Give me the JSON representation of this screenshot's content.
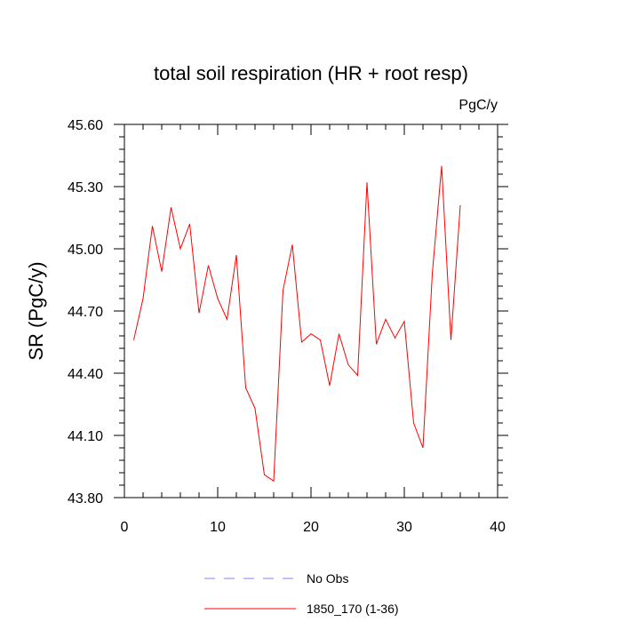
{
  "chart_data": {
    "type": "line",
    "title": "total soil respiration (HR + root resp)",
    "units": "PgC/y",
    "xlabel": "",
    "ylabel": "SR  (PgC/y)",
    "xlim": [
      0,
      40
    ],
    "ylim": [
      43.8,
      45.6
    ],
    "x_ticks": [
      0,
      10,
      20,
      30,
      40
    ],
    "x_tick_labels": [
      "0",
      "10",
      "20",
      "30",
      "40"
    ],
    "y_ticks": [
      43.8,
      44.1,
      44.4,
      44.7,
      45.0,
      45.3,
      45.6
    ],
    "y_tick_labels": [
      "43.80",
      "44.10",
      "44.40",
      "44.70",
      "45.00",
      "45.30",
      "45.60"
    ],
    "grid": false,
    "legend_position": "bottom",
    "series": [
      {
        "name": "No Obs",
        "color": "#8080ff",
        "style": "dashed",
        "x": [],
        "values": []
      },
      {
        "name": "1850_170 (1-36)",
        "color": "#ff0000",
        "style": "solid",
        "x": [
          1,
          2,
          3,
          4,
          5,
          6,
          7,
          8,
          9,
          10,
          11,
          12,
          13,
          14,
          15,
          16,
          17,
          18,
          19,
          20,
          21,
          22,
          23,
          24,
          25,
          26,
          27,
          28,
          29,
          30,
          31,
          32,
          33,
          34,
          35,
          36
        ],
        "values": [
          44.56,
          44.76,
          45.11,
          44.89,
          45.2,
          45.0,
          45.12,
          44.69,
          44.92,
          44.76,
          44.66,
          44.97,
          44.33,
          44.23,
          43.91,
          43.88,
          44.8,
          45.02,
          44.55,
          44.59,
          44.56,
          44.34,
          44.59,
          44.44,
          44.39,
          45.32,
          44.54,
          44.66,
          44.57,
          44.65,
          44.16,
          44.04,
          44.88,
          45.4,
          44.56,
          45.21
        ]
      }
    ]
  }
}
